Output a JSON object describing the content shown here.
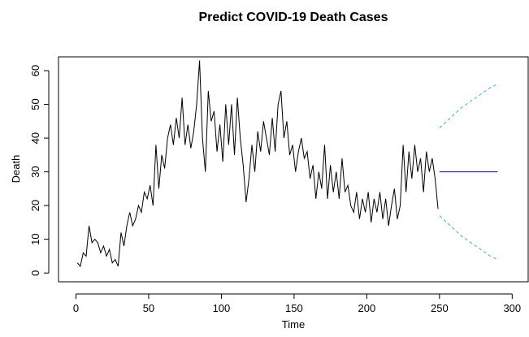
{
  "chart_data": {
    "type": "line",
    "title": "Predict COVID-19 Death Cases",
    "x_label": "Time",
    "y_label": "Death",
    "xlim": [
      -12,
      311
    ],
    "ylim": [
      -2.6,
      64.1
    ],
    "xticks": [
      0,
      50,
      100,
      150,
      200,
      250,
      300
    ],
    "yticks": [
      0,
      10,
      20,
      30,
      40,
      50,
      60
    ],
    "grid": false,
    "series": [
      {
        "color": "#000000",
        "dash": false,
        "x": [
          1,
          3,
          5,
          7,
          9,
          11,
          13,
          15,
          17,
          19,
          21,
          23,
          25,
          27,
          29,
          31,
          33,
          35,
          37,
          39,
          41,
          43,
          45,
          47,
          49,
          51,
          53,
          55,
          57,
          59,
          61,
          63,
          65,
          67,
          69,
          71,
          73,
          75,
          77,
          79,
          81,
          83,
          85,
          87,
          89,
          91,
          93,
          95,
          97,
          99,
          101,
          103,
          105,
          107,
          109,
          111,
          113,
          115,
          117,
          119,
          121,
          123,
          125,
          127,
          129,
          131,
          133,
          135,
          137,
          139,
          141,
          143,
          145,
          147,
          149,
          151,
          153,
          155,
          157,
          159,
          161,
          163,
          165,
          167,
          169,
          171,
          173,
          175,
          177,
          179,
          181,
          183,
          185,
          187,
          189,
          191,
          193,
          195,
          197,
          199,
          201,
          203,
          205,
          207,
          209,
          211,
          213,
          215,
          217,
          219,
          221,
          223,
          225,
          227,
          229,
          231,
          233,
          235,
          237,
          239,
          241,
          243,
          245,
          247,
          249
        ],
        "values": [
          3,
          2,
          6,
          5,
          14,
          9,
          10,
          9,
          6,
          8,
          5,
          7,
          3,
          4,
          2,
          12,
          8,
          14,
          18,
          14,
          16,
          20,
          18,
          24,
          22,
          26,
          20,
          38,
          25,
          35,
          31,
          40,
          44,
          38,
          46,
          40,
          52,
          38,
          44,
          37,
          42,
          50,
          63,
          40,
          30,
          54,
          45,
          48,
          36,
          44,
          33,
          50,
          38,
          50,
          35,
          52,
          40,
          32,
          21,
          28,
          38,
          30,
          42,
          36,
          45,
          40,
          35,
          46,
          36,
          50,
          54,
          40,
          45,
          35,
          38,
          30,
          36,
          40,
          34,
          36,
          28,
          32,
          22,
          30,
          25,
          38,
          22,
          32,
          24,
          30,
          22,
          34,
          24,
          26,
          20,
          18,
          24,
          16,
          22,
          18,
          24,
          15,
          22,
          18,
          24,
          16,
          22,
          14,
          20,
          25,
          16,
          20,
          38,
          24,
          36,
          28,
          38,
          30,
          34,
          24,
          36,
          30,
          34,
          28,
          19
        ]
      },
      {
        "color": "#0000cd",
        "dash": false,
        "x": [
          250,
          290
        ],
        "values": [
          30,
          30
        ]
      },
      {
        "color": "#3cb3c8",
        "dash": true,
        "x": [
          250,
          255,
          260,
          265,
          270,
          275,
          280,
          285,
          290
        ],
        "values": [
          43,
          45,
          47,
          49,
          50.5,
          52,
          53.5,
          55,
          56
        ]
      },
      {
        "color": "#3cb3c8",
        "dash": true,
        "x": [
          250,
          255,
          260,
          265,
          270,
          275,
          280,
          285,
          290
        ],
        "values": [
          17,
          15,
          13,
          11,
          9.5,
          8,
          6.5,
          5,
          4
        ]
      }
    ]
  }
}
